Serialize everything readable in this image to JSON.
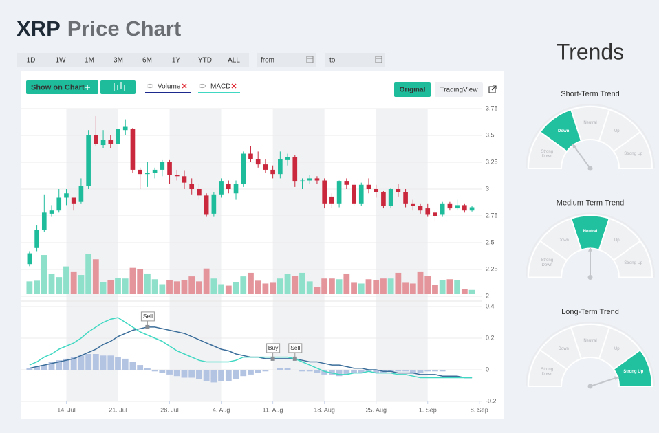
{
  "header": {
    "symbol": "XRP",
    "title": "Price Chart"
  },
  "controls": {
    "ranges": [
      "1D",
      "1W",
      "1M",
      "3M",
      "6M",
      "1Y",
      "YTD",
      "ALL"
    ],
    "from": "from",
    "to": "to",
    "show_on_chart": "Show on Chart",
    "indicators": [
      {
        "name": "Volume",
        "color": "#1b2a8c"
      },
      {
        "name": "MACD",
        "color": "#40d8c2"
      }
    ],
    "views": [
      "Original",
      "TradingView"
    ]
  },
  "chart_data": {
    "type": "candlestick",
    "up_color": "#1fbc9c",
    "down_color": "#c9283d",
    "xlim": [
      -1.2,
      61.3
    ],
    "xticks": [
      {
        "value": 5,
        "label": "14. Jul"
      },
      {
        "value": 12,
        "label": "21. Jul"
      },
      {
        "value": 19,
        "label": "28. Jul"
      },
      {
        "value": 26,
        "label": "4. Aug"
      },
      {
        "value": 33,
        "label": "11. Aug"
      },
      {
        "value": 40,
        "label": "18. Aug"
      },
      {
        "value": 47,
        "label": "25. Aug"
      },
      {
        "value": 54,
        "label": "1. Sep"
      },
      {
        "value": 61,
        "label": "8. Sep"
      }
    ],
    "ylim": [
      2,
      3.75
    ],
    "yticks": [
      2,
      2.25,
      2.5,
      2.75,
      3,
      3.25,
      3.5,
      3.75
    ],
    "grid": true,
    "open": [
      2.3,
      2.45,
      2.62,
      2.77,
      2.8,
      2.92,
      2.92,
      2.88,
      3.03,
      3.5,
      3.41,
      3.46,
      3.42,
      3.55,
      3.56,
      3.18,
      3.14,
      3.15,
      3.18,
      3.25,
      3.13,
      3.12,
      3.05,
      3.0,
      2.94,
      2.77,
      2.95,
      3.05,
      2.96,
      3.05,
      3.33,
      3.28,
      3.23,
      3.18,
      3.14,
      3.27,
      3.3,
      3.07,
      3.08,
      3.1,
      3.08,
      2.93,
      2.86,
      3.07,
      3.04,
      2.86,
      3.04,
      3.0,
      2.97,
      2.84,
      3.0,
      2.97,
      2.86,
      2.84,
      2.82,
      2.78,
      2.76,
      2.86,
      2.82,
      2.85,
      2.8
    ],
    "high": [
      2.42,
      2.66,
      2.95,
      2.85,
      3.0,
      3.0,
      2.92,
      3.1,
      3.55,
      3.68,
      3.55,
      3.5,
      3.62,
      3.65,
      3.57,
      3.2,
      3.25,
      3.2,
      3.27,
      3.27,
      3.18,
      3.17,
      3.1,
      3.05,
      2.96,
      2.97,
      3.1,
      3.08,
      3.08,
      3.35,
      3.4,
      3.35,
      3.28,
      3.22,
      3.35,
      3.33,
      3.32,
      3.1,
      3.13,
      3.12,
      3.1,
      2.96,
      3.08,
      3.1,
      3.06,
      3.06,
      3.1,
      3.04,
      2.98,
      3.01,
      3.05,
      3.0,
      2.9,
      2.86,
      2.86,
      2.8,
      2.88,
      2.88,
      2.9,
      2.86,
      2.84
    ],
    "low": [
      2.28,
      2.42,
      2.6,
      2.74,
      2.78,
      2.85,
      2.8,
      2.86,
      3.0,
      3.4,
      3.38,
      3.38,
      3.4,
      3.5,
      3.15,
      3.0,
      3.02,
      3.1,
      3.12,
      3.05,
      3.08,
      3.0,
      2.95,
      2.9,
      2.74,
      2.74,
      2.92,
      2.96,
      2.9,
      3.02,
      3.25,
      3.2,
      3.15,
      3.1,
      3.1,
      3.22,
      3.02,
      3.0,
      3.05,
      3.05,
      2.82,
      2.82,
      2.83,
      3.0,
      2.84,
      2.84,
      2.96,
      2.92,
      2.82,
      2.82,
      2.93,
      2.83,
      2.8,
      2.77,
      2.74,
      2.7,
      2.74,
      2.8,
      2.8,
      2.78,
      2.79
    ],
    "close": [
      2.4,
      2.62,
      2.78,
      2.8,
      2.92,
      2.96,
      2.86,
      3.03,
      3.5,
      3.42,
      3.46,
      3.42,
      3.56,
      3.58,
      3.18,
      3.14,
      3.15,
      3.18,
      3.25,
      3.13,
      3.12,
      3.06,
      3.0,
      2.94,
      2.76,
      2.95,
      3.07,
      3.0,
      3.05,
      3.33,
      3.28,
      3.23,
      3.18,
      3.14,
      3.28,
      3.3,
      3.07,
      3.08,
      3.1,
      3.08,
      2.86,
      2.86,
      3.07,
      3.04,
      2.86,
      3.04,
      3.0,
      2.97,
      2.84,
      3.0,
      2.97,
      2.86,
      2.84,
      2.8,
      2.76,
      2.75,
      2.86,
      2.82,
      2.85,
      2.8,
      2.83
    ],
    "volume": {
      "up_color": "#8fe0cb",
      "down_color": "#e3959b",
      "values": [
        1.8,
        1.9,
        5.5,
        2.8,
        2.4,
        3.9,
        3.1,
        2.7,
        5.6,
        4.9,
        1.7,
        2.0,
        2.3,
        2.2,
        3.7,
        3.5,
        2.9,
        2.1,
        1.4,
        2.0,
        1.8,
        2.0,
        2.5,
        1.8,
        3.6,
        2.2,
        1.4,
        1.2,
        1.7,
        2.5,
        3.0,
        1.9,
        1.5,
        1.6,
        2.2,
        2.8,
        2.6,
        3.0,
        1.8,
        1.0,
        2.2,
        2.2,
        2.1,
        2.9,
        1.6,
        1.5,
        2.1,
        2.0,
        2.2,
        2.2,
        3.0,
        1.6,
        1.5,
        3.1,
        2.6,
        1.3,
        2.0,
        2.1,
        2.0,
        0.7,
        0.6
      ]
    },
    "macd": {
      "ylim": [
        -0.2,
        0.4
      ],
      "yticks": [
        -0.2,
        0,
        0.2,
        0.4
      ],
      "lines": [
        {
          "color": "#3a6d9a",
          "values": [
            0.01,
            0.02,
            0.03,
            0.04,
            0.05,
            0.06,
            0.07,
            0.09,
            0.11,
            0.13,
            0.16,
            0.18,
            0.21,
            0.23,
            0.25,
            0.26,
            0.27,
            0.27,
            0.26,
            0.25,
            0.24,
            0.23,
            0.21,
            0.19,
            0.17,
            0.15,
            0.13,
            0.12,
            0.1,
            0.09,
            0.08,
            0.08,
            0.07,
            0.07,
            0.07,
            0.07,
            0.07,
            0.06,
            0.05,
            0.05,
            0.04,
            0.03,
            0.03,
            0.02,
            0.01,
            0.01,
            0.0,
            0.0,
            -0.01,
            -0.01,
            -0.02,
            -0.02,
            -0.02,
            -0.03,
            -0.03,
            -0.03,
            -0.04,
            -0.04,
            -0.04,
            -0.05,
            -0.05
          ]
        },
        {
          "color": "#40d8c2",
          "values": [
            0.03,
            0.05,
            0.08,
            0.1,
            0.13,
            0.15,
            0.17,
            0.2,
            0.24,
            0.27,
            0.3,
            0.32,
            0.33,
            0.3,
            0.27,
            0.24,
            0.22,
            0.2,
            0.18,
            0.15,
            0.12,
            0.1,
            0.08,
            0.06,
            0.05,
            0.05,
            0.05,
            0.05,
            0.06,
            0.08,
            0.08,
            0.08,
            0.08,
            0.08,
            0.08,
            0.08,
            0.07,
            0.05,
            0.03,
            0.01,
            -0.01,
            -0.02,
            -0.03,
            -0.03,
            -0.02,
            -0.02,
            -0.01,
            -0.02,
            -0.02,
            -0.02,
            -0.03,
            -0.03,
            -0.04,
            -0.05,
            -0.05,
            -0.05,
            -0.05,
            -0.05,
            -0.05,
            -0.05,
            -0.05
          ]
        }
      ],
      "histogram": {
        "color": "#b3c3e2",
        "values": [
          0.01,
          0.02,
          0.03,
          0.05,
          0.06,
          0.07,
          0.08,
          0.09,
          0.1,
          0.1,
          0.09,
          0.09,
          0.08,
          0.07,
          0.05,
          0.03,
          0.01,
          -0.01,
          -0.02,
          -0.03,
          -0.04,
          -0.05,
          -0.05,
          -0.06,
          -0.07,
          -0.08,
          -0.07,
          -0.07,
          -0.06,
          -0.04,
          -0.03,
          -0.02,
          -0.01,
          0.0,
          0.01,
          0.01,
          0.0,
          -0.01,
          -0.01,
          -0.02,
          -0.03,
          -0.03,
          -0.04,
          -0.03,
          -0.02,
          -0.02,
          -0.01,
          -0.02,
          -0.02,
          -0.01,
          -0.01,
          -0.01,
          -0.02,
          -0.02,
          -0.01,
          -0.01,
          -0.01,
          0.0,
          0.0,
          0.0,
          0.0
        ]
      },
      "annotations": [
        {
          "label": "Sell",
          "x": 16
        },
        {
          "label": "Buy",
          "x": 33
        },
        {
          "label": "Sell",
          "x": 36
        }
      ]
    }
  },
  "trends": {
    "title": "Trends",
    "color": "#21c1a0",
    "levels": [
      "Strong Down",
      "Down",
      "Neutral",
      "Up",
      "Strong Up"
    ],
    "gauges": [
      {
        "title": "Short-Term Trend",
        "active": 1
      },
      {
        "title": "Medium-Term Trend",
        "active": 2
      },
      {
        "title": "Long-Term Trend",
        "active": 4
      }
    ]
  }
}
